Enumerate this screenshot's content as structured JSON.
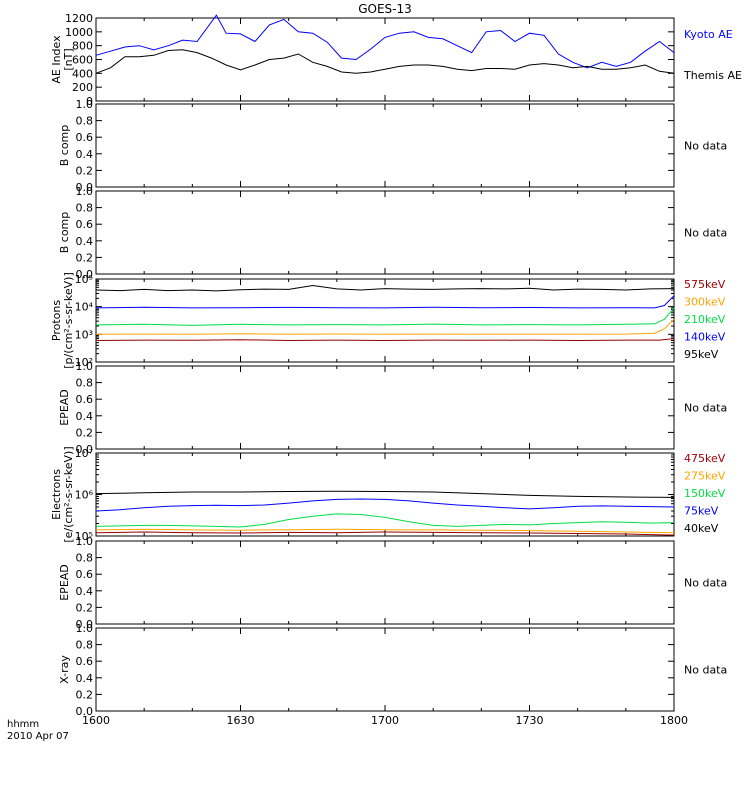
{
  "title": "GOES-13",
  "footer": {
    "time_label": "hhmm",
    "date_label": "2010 Apr 07"
  },
  "colors": {
    "black": "#000000",
    "blue": "#0000ff",
    "green": "#00dd44",
    "orange": "#ffa500",
    "darkred": "#990000"
  },
  "chart_data": [
    {
      "type": "line",
      "ylabel": "AE Index",
      "ylabel2": "[nT]",
      "ylim": [
        0,
        1200
      ],
      "yticks": [
        "0",
        "200",
        "400",
        "600",
        "800",
        "1000",
        "1200"
      ],
      "series": [
        {
          "name": "Kyoto AE",
          "color": "#0000ff",
          "x": [
            1600,
            1603,
            1606,
            1609,
            1612,
            1615,
            1618,
            1621,
            1625,
            1627,
            1630,
            1633,
            1636,
            1639,
            1642,
            1645,
            1648,
            1651,
            1654,
            1657,
            1700,
            1703,
            1706,
            1709,
            1712,
            1715,
            1718,
            1721,
            1724,
            1727,
            1730,
            1733,
            1736,
            1739,
            1742,
            1745,
            1748,
            1751,
            1754,
            1757,
            1800
          ],
          "values": [
            660,
            720,
            780,
            800,
            740,
            800,
            880,
            860,
            1240,
            980,
            970,
            860,
            1100,
            1180,
            1000,
            980,
            850,
            620,
            600,
            750,
            920,
            980,
            1000,
            920,
            900,
            800,
            700,
            1000,
            1020,
            860,
            980,
            950,
            680,
            560,
            480,
            560,
            500,
            560,
            720,
            860,
            700
          ]
        },
        {
          "name": "Themis AE",
          "color": "#000000",
          "x": [
            1600,
            1603,
            1606,
            1609,
            1612,
            1615,
            1618,
            1621,
            1624,
            1627,
            1630,
            1633,
            1636,
            1639,
            1642,
            1645,
            1648,
            1651,
            1654,
            1657,
            1700,
            1703,
            1706,
            1709,
            1712,
            1715,
            1718,
            1721,
            1724,
            1727,
            1730,
            1733,
            1736,
            1739,
            1742,
            1745,
            1748,
            1751,
            1754,
            1757,
            1800
          ],
          "values": [
            400,
            480,
            640,
            640,
            660,
            730,
            740,
            700,
            620,
            520,
            450,
            520,
            600,
            620,
            680,
            560,
            500,
            420,
            400,
            420,
            460,
            500,
            520,
            520,
            500,
            460,
            440,
            470,
            470,
            460,
            520,
            540,
            520,
            480,
            500,
            460,
            460,
            480,
            520,
            430,
            400
          ]
        }
      ]
    },
    {
      "type": "line",
      "ylabel": "B comp",
      "ylim": [
        0,
        1
      ],
      "yticks": [
        "0.0",
        "0.2",
        "0.4",
        "0.6",
        "0.8",
        "1.0"
      ],
      "note": "No data",
      "series": []
    },
    {
      "type": "line",
      "ylabel": "B comp",
      "ylim": [
        0,
        1
      ],
      "yticks": [
        "0.0",
        "0.2",
        "0.4",
        "0.6",
        "0.8",
        "1.0"
      ],
      "note": "No data",
      "series": []
    },
    {
      "type": "line",
      "yscale": "log",
      "ylabel": "Protons",
      "ylabel2": "[p/(cm²-s-sr-keV)]",
      "ylim": [
        100,
        100000
      ],
      "yticks": [
        "10²",
        "10³",
        "10⁴",
        "10⁵"
      ],
      "series": [
        {
          "name": "575keV",
          "color": "#990000",
          "x": [
            1600,
            1610,
            1620,
            1630,
            1640,
            1650,
            1700,
            1710,
            1720,
            1730,
            1740,
            1750,
            1757,
            1800
          ],
          "values": [
            600,
            620,
            610,
            640,
            600,
            620,
            600,
            620,
            610,
            620,
            600,
            620,
            620,
            700
          ]
        },
        {
          "name": "300keV",
          "color": "#ffa500",
          "x": [
            1600,
            1610,
            1620,
            1630,
            1640,
            1650,
            1700,
            1710,
            1720,
            1730,
            1740,
            1750,
            1756,
            1758,
            1800
          ],
          "values": [
            1000,
            1020,
            1000,
            1050,
            1010,
            1030,
            1000,
            1020,
            1000,
            1010,
            1000,
            1020,
            1100,
            1600,
            3500
          ]
        },
        {
          "name": "210keV",
          "color": "#00dd44",
          "x": [
            1600,
            1610,
            1620,
            1630,
            1640,
            1650,
            1700,
            1710,
            1720,
            1730,
            1740,
            1750,
            1756,
            1758,
            1800
          ],
          "values": [
            2200,
            2300,
            2100,
            2300,
            2200,
            2250,
            2200,
            2350,
            2200,
            2250,
            2200,
            2300,
            2400,
            3500,
            9000
          ]
        },
        {
          "name": "140keV",
          "color": "#0000ff",
          "x": [
            1600,
            1610,
            1620,
            1630,
            1640,
            1650,
            1700,
            1710,
            1720,
            1730,
            1740,
            1750,
            1756,
            1758,
            1800
          ],
          "values": [
            9000,
            9500,
            9000,
            9200,
            9400,
            9100,
            9000,
            9500,
            9200,
            9300,
            9000,
            9200,
            9000,
            11000,
            25000
          ]
        },
        {
          "name": "95keV",
          "color": "#000000",
          "x": [
            1600,
            1605,
            1610,
            1615,
            1620,
            1625,
            1630,
            1635,
            1640,
            1645,
            1650,
            1655,
            1700,
            1705,
            1710,
            1715,
            1720,
            1725,
            1730,
            1735,
            1740,
            1745,
            1750,
            1755,
            1800
          ],
          "values": [
            40000,
            38000,
            42000,
            38000,
            40000,
            37000,
            41000,
            43000,
            42000,
            58000,
            44000,
            40000,
            45000,
            43000,
            42000,
            44000,
            45000,
            44000,
            46000,
            40000,
            43000,
            42000,
            40000,
            44000,
            45000
          ]
        }
      ]
    },
    {
      "type": "line",
      "ylabel": "EPEAD",
      "ylim": [
        0,
        1
      ],
      "yticks": [
        "0.0",
        "0.2",
        "0.4",
        "0.6",
        "0.8",
        "1.0"
      ],
      "note": "No data",
      "series": []
    },
    {
      "type": "line",
      "yscale": "log",
      "ylabel": "Electrons",
      "ylabel2": "[e/(cm²-s-sr-keV)]",
      "ylim": [
        100000,
        10000000
      ],
      "yticks": [
        "10⁵",
        "10⁶",
        "10⁷"
      ],
      "series": [
        {
          "name": "475keV",
          "color": "#990000",
          "x": [
            1600,
            1610,
            1620,
            1630,
            1640,
            1650,
            1700,
            1710,
            1720,
            1730,
            1740,
            1750,
            1800
          ],
          "values": [
            120000,
            125000,
            120000,
            118000,
            122000,
            120000,
            125000,
            122000,
            120000,
            118000,
            115000,
            112000,
            105000
          ]
        },
        {
          "name": "275keV",
          "color": "#ffa500",
          "x": [
            1600,
            1610,
            1620,
            1630,
            1640,
            1650,
            1700,
            1710,
            1720,
            1730,
            1740,
            1750,
            1800
          ],
          "values": [
            140000,
            145000,
            140000,
            138000,
            142000,
            145000,
            142000,
            140000,
            138000,
            135000,
            130000,
            125000,
            120000
          ]
        },
        {
          "name": "150keV",
          "color": "#00dd44",
          "x": [
            1600,
            1605,
            1610,
            1615,
            1620,
            1625,
            1630,
            1635,
            1640,
            1645,
            1650,
            1655,
            1700,
            1705,
            1710,
            1715,
            1720,
            1725,
            1730,
            1735,
            1740,
            1745,
            1750,
            1755,
            1800
          ],
          "values": [
            170000,
            175000,
            180000,
            180000,
            175000,
            170000,
            165000,
            190000,
            250000,
            300000,
            340000,
            330000,
            280000,
            220000,
            180000,
            170000,
            180000,
            190000,
            185000,
            200000,
            210000,
            220000,
            215000,
            205000,
            210000
          ]
        },
        {
          "name": "75keV",
          "color": "#0000ff",
          "x": [
            1600,
            1605,
            1610,
            1615,
            1620,
            1625,
            1630,
            1635,
            1640,
            1645,
            1650,
            1655,
            1700,
            1705,
            1710,
            1715,
            1720,
            1725,
            1730,
            1735,
            1740,
            1745,
            1750,
            1755,
            1800
          ],
          "values": [
            400000,
            430000,
            480000,
            520000,
            540000,
            550000,
            540000,
            560000,
            620000,
            700000,
            760000,
            780000,
            760000,
            700000,
            620000,
            560000,
            520000,
            480000,
            450000,
            480000,
            520000,
            530000,
            520000,
            510000,
            500000
          ]
        },
        {
          "name": "40keV",
          "color": "#000000",
          "x": [
            1600,
            1610,
            1620,
            1630,
            1640,
            1650,
            1700,
            1710,
            1720,
            1730,
            1740,
            1750,
            1800
          ],
          "values": [
            1050000,
            1100000,
            1150000,
            1150000,
            1180000,
            1200000,
            1180000,
            1150000,
            1050000,
            950000,
            900000,
            870000,
            850000
          ]
        }
      ]
    },
    {
      "type": "line",
      "ylabel": "EPEAD",
      "ylim": [
        0,
        1
      ],
      "yticks": [
        "0.0",
        "0.2",
        "0.4",
        "0.6",
        "0.8",
        "1.0"
      ],
      "note": "No data",
      "series": []
    },
    {
      "type": "line",
      "ylabel": "X-ray",
      "ylim": [
        0,
        1
      ],
      "yticks": [
        "0.0",
        "0.2",
        "0.4",
        "0.6",
        "0.8",
        "1.0"
      ],
      "note": "No data",
      "series": []
    }
  ],
  "xaxis": {
    "xlim": [
      1600,
      1800
    ],
    "tick_labels": [
      "1600",
      "1630",
      "1700",
      "1730",
      "1800"
    ]
  }
}
